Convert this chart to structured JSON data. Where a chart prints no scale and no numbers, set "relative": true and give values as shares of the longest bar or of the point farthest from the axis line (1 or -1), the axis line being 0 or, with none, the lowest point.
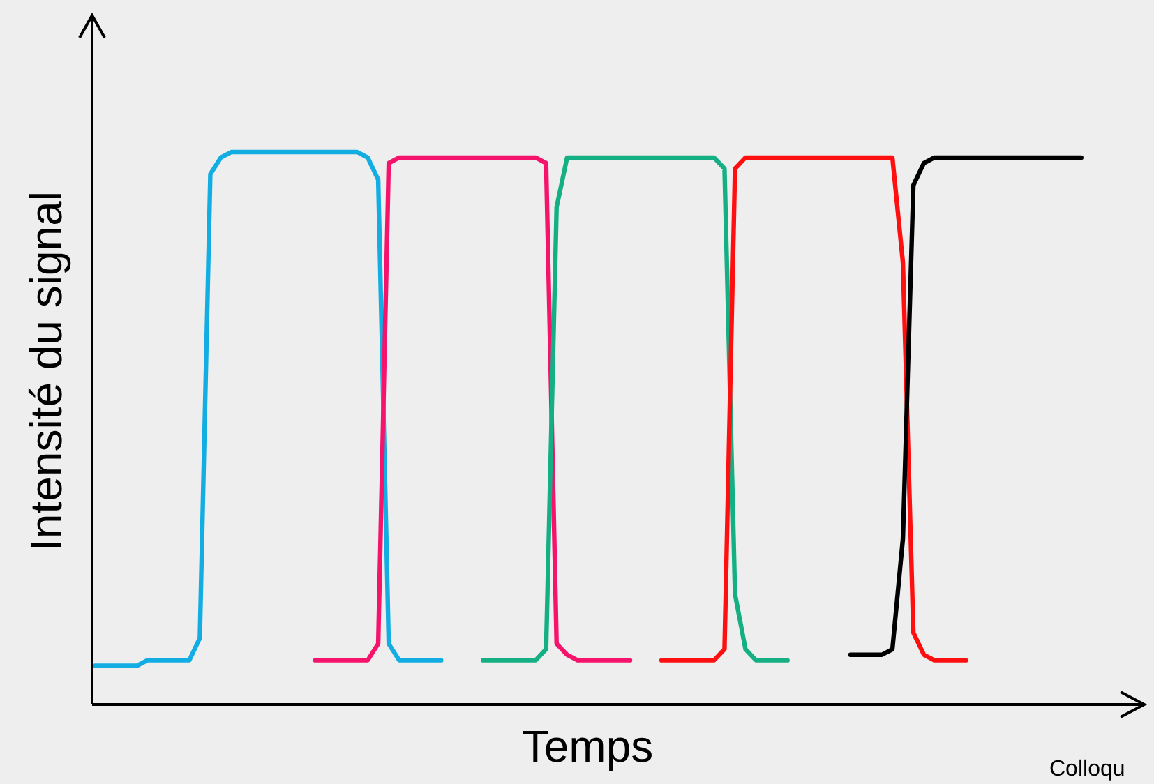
{
  "chart_data": {
    "type": "line",
    "relative": true,
    "xlabel": "Temps",
    "ylabel": "Intensité du signal",
    "line_style": "solid",
    "annotations": [
      "Colloqu"
    ],
    "categories": [
      null,
      null,
      null,
      null,
      null,
      null,
      null,
      null,
      null,
      null,
      null,
      null,
      null,
      null,
      null,
      null,
      null,
      null,
      null,
      null,
      null,
      null,
      null,
      null,
      null,
      null,
      null,
      null,
      null,
      null,
      null,
      null,
      null,
      null,
      null,
      null,
      null,
      null,
      null,
      null,
      null,
      null,
      null,
      null,
      null,
      null,
      null,
      null,
      null,
      null,
      null,
      null,
      null,
      null,
      null,
      null,
      null,
      null,
      null,
      null,
      null,
      null,
      null,
      null,
      null,
      null,
      null,
      null,
      null,
      null,
      null,
      null,
      null,
      null,
      null,
      null,
      null,
      null,
      null,
      null,
      null,
      null,
      null,
      null,
      null,
      null,
      null,
      null,
      null,
      null,
      null,
      null,
      null,
      null,
      null,
      null,
      null,
      null,
      null,
      null,
      null
    ],
    "series": [
      {
        "color": "#12ade2",
        "values": [
          0.07,
          0.07,
          0.07,
          0.07,
          0.07,
          0.08,
          0.08,
          0.08,
          0.08,
          0.08,
          0.12,
          0.96,
          0.99,
          1,
          1,
          1,
          1,
          1,
          1,
          1,
          1,
          1,
          1,
          1,
          1,
          1,
          0.99,
          0.95,
          0.11,
          0.08,
          0.08,
          0.08,
          0.08,
          0.08,
          null,
          null,
          null,
          null,
          null,
          null,
          null,
          null,
          null,
          null,
          null,
          null,
          null,
          null,
          null,
          null,
          null,
          null,
          null,
          null,
          null,
          null,
          null,
          null,
          null,
          null,
          null,
          null,
          null,
          null,
          null,
          null,
          null,
          null,
          null,
          null,
          null,
          null,
          null,
          null,
          null,
          null,
          null,
          null,
          null,
          null,
          null,
          null,
          null,
          null,
          null,
          null,
          null,
          null,
          null,
          null,
          null,
          null,
          null,
          null,
          null,
          null,
          null,
          null,
          null,
          null,
          null
        ]
      },
      {
        "color": "#f5136c",
        "values": [
          null,
          null,
          null,
          null,
          null,
          null,
          null,
          null,
          null,
          null,
          null,
          null,
          null,
          null,
          null,
          null,
          null,
          null,
          null,
          null,
          null,
          0.08,
          0.08,
          0.08,
          0.08,
          0.08,
          0.08,
          0.11,
          0.98,
          0.99,
          0.99,
          0.99,
          0.99,
          0.99,
          0.99,
          0.99,
          0.99,
          0.99,
          0.99,
          0.99,
          0.99,
          0.99,
          0.99,
          0.98,
          0.11,
          0.09,
          0.08,
          0.08,
          0.08,
          0.08,
          0.08,
          0.08,
          null,
          null,
          null,
          null,
          null,
          null,
          null,
          null,
          null,
          null,
          null,
          null,
          null,
          null,
          null,
          null,
          null,
          null,
          null,
          null,
          null,
          null,
          null,
          null,
          null,
          null,
          null,
          null,
          null,
          null,
          null,
          null,
          null,
          null,
          null,
          null,
          null,
          null,
          null,
          null,
          null,
          null,
          null,
          null,
          null,
          null,
          null,
          null,
          null
        ]
      },
      {
        "color": "#14b084",
        "values": [
          null,
          null,
          null,
          null,
          null,
          null,
          null,
          null,
          null,
          null,
          null,
          null,
          null,
          null,
          null,
          null,
          null,
          null,
          null,
          null,
          null,
          null,
          null,
          null,
          null,
          null,
          null,
          null,
          null,
          null,
          null,
          null,
          null,
          null,
          null,
          null,
          null,
          0.08,
          0.08,
          0.08,
          0.08,
          0.08,
          0.08,
          0.1,
          0.9,
          0.99,
          0.99,
          0.99,
          0.99,
          0.99,
          0.99,
          0.99,
          0.99,
          0.99,
          0.99,
          0.99,
          0.99,
          0.99,
          0.99,
          0.99,
          0.97,
          0.2,
          0.1,
          0.08,
          0.08,
          0.08,
          0.08,
          null,
          null,
          null,
          null,
          null,
          null,
          null,
          null,
          null,
          null,
          null,
          null,
          null,
          null,
          null,
          null,
          null,
          null,
          null,
          null,
          null,
          null,
          null,
          null,
          null,
          null,
          null,
          null,
          null,
          null,
          null,
          null,
          null,
          null
        ]
      },
      {
        "color": "#ff1010",
        "values": [
          null,
          null,
          null,
          null,
          null,
          null,
          null,
          null,
          null,
          null,
          null,
          null,
          null,
          null,
          null,
          null,
          null,
          null,
          null,
          null,
          null,
          null,
          null,
          null,
          null,
          null,
          null,
          null,
          null,
          null,
          null,
          null,
          null,
          null,
          null,
          null,
          null,
          null,
          null,
          null,
          null,
          null,
          null,
          null,
          null,
          null,
          null,
          null,
          null,
          null,
          null,
          null,
          null,
          null,
          0.08,
          0.08,
          0.08,
          0.08,
          0.08,
          0.08,
          0.1,
          0.97,
          0.99,
          0.99,
          0.99,
          0.99,
          0.99,
          0.99,
          0.99,
          0.99,
          0.99,
          0.99,
          0.99,
          0.99,
          0.99,
          0.99,
          0.99,
          0.8,
          0.13,
          0.09,
          0.08,
          0.08,
          0.08,
          0.08,
          null,
          null,
          null,
          null,
          null,
          null,
          null,
          null,
          null,
          null,
          null,
          null,
          null,
          null,
          null,
          null,
          null
        ]
      },
      {
        "color": "#000000",
        "values": [
          null,
          null,
          null,
          null,
          null,
          null,
          null,
          null,
          null,
          null,
          null,
          null,
          null,
          null,
          null,
          null,
          null,
          null,
          null,
          null,
          null,
          null,
          null,
          null,
          null,
          null,
          null,
          null,
          null,
          null,
          null,
          null,
          null,
          null,
          null,
          null,
          null,
          null,
          null,
          null,
          null,
          null,
          null,
          null,
          null,
          null,
          null,
          null,
          null,
          null,
          null,
          null,
          null,
          null,
          null,
          null,
          null,
          null,
          null,
          null,
          null,
          null,
          null,
          null,
          null,
          null,
          null,
          null,
          null,
          null,
          null,
          null,
          0.09,
          0.09,
          0.09,
          0.09,
          0.1,
          0.3,
          0.94,
          0.98,
          0.99,
          0.99,
          0.99,
          0.99,
          0.99,
          0.99,
          0.99,
          0.99,
          0.99,
          0.99,
          0.99,
          0.99,
          0.99,
          0.99,
          0.99,
          null,
          null,
          null,
          null,
          null,
          null
        ]
      }
    ]
  }
}
